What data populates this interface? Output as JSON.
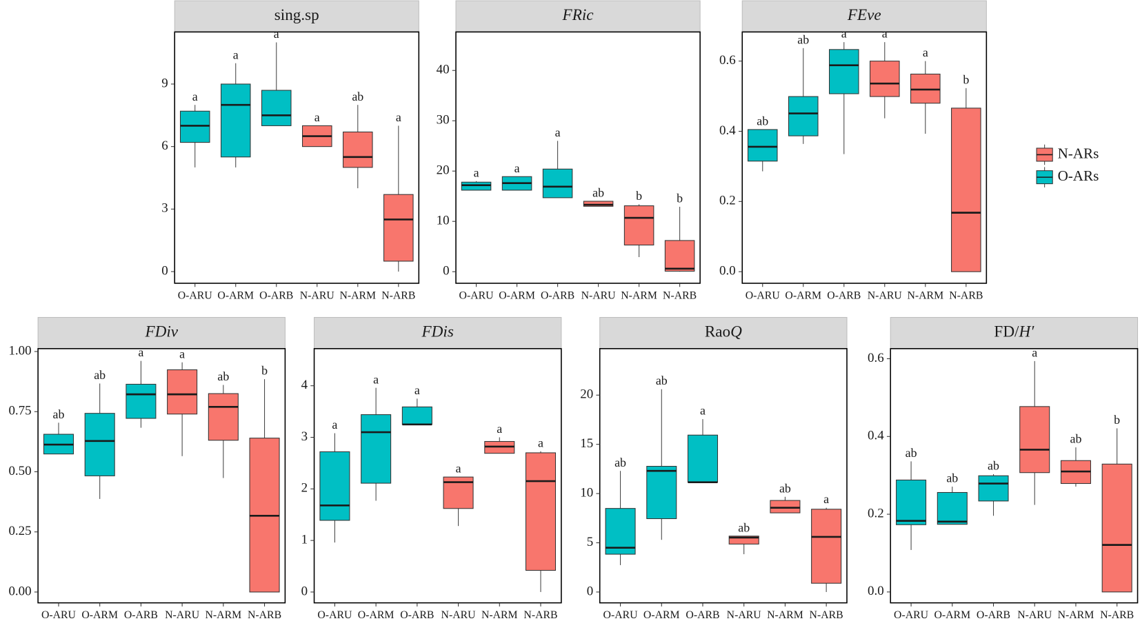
{
  "chart_data": [
    {
      "type": "box",
      "title": [
        {
          "text": "sing.sp",
          "italic": false
        }
      ],
      "categories": [
        "O-ARU",
        "O-ARM",
        "O-ARB",
        "N-ARU",
        "N-ARM",
        "N-ARB"
      ],
      "colors": [
        "#00BFC4",
        "#00BFC4",
        "#00BFC4",
        "#F8766D",
        "#F8766D",
        "#F8766D"
      ],
      "min": [
        5,
        5,
        7,
        6,
        4,
        0
      ],
      "q1": [
        6.2,
        5.5,
        7,
        6,
        5,
        0.5
      ],
      "median": [
        7,
        8,
        7.5,
        6.5,
        5.5,
        2.5
      ],
      "q3": [
        7.7,
        9,
        8.7,
        7,
        6.7,
        3.7
      ],
      "max": [
        8,
        10,
        11,
        7,
        8,
        7
      ],
      "letters": [
        "a",
        "a",
        "a",
        "a",
        "ab",
        "a"
      ],
      "ylim": [
        -0.56,
        11.5
      ],
      "yticks": [
        0,
        3,
        6,
        9
      ]
    },
    {
      "type": "box",
      "title": [
        {
          "text": "FRic",
          "italic": true
        }
      ],
      "categories": [
        "O-ARU",
        "O-ARM",
        "O-ARB",
        "N-ARU",
        "N-ARM",
        "N-ARB"
      ],
      "colors": [
        "#00BFC4",
        "#00BFC4",
        "#00BFC4",
        "#F8766D",
        "#F8766D",
        "#F8766D"
      ],
      "min": [
        16.2,
        16.2,
        14.7,
        13,
        2.9,
        0
      ],
      "q1": [
        16.2,
        16.2,
        14.7,
        13,
        5.3,
        0.1
      ],
      "median": [
        17.2,
        17.6,
        16.9,
        13.3,
        10.7,
        0.6
      ],
      "q3": [
        17.8,
        18.9,
        20.4,
        14,
        13.1,
        6.2
      ],
      "max": [
        18,
        18.9,
        26,
        14,
        13.4,
        12.9
      ],
      "letters": [
        "a",
        "a",
        "a",
        "ab",
        "b",
        "b"
      ],
      "ylim": [
        -2.3,
        47.65
      ],
      "yticks": [
        0,
        10,
        20,
        30,
        40
      ]
    },
    {
      "type": "box",
      "title": [
        {
          "text": "FEve",
          "italic": true
        }
      ],
      "categories": [
        "O-ARU",
        "O-ARM",
        "O-ARB",
        "N-ARU",
        "N-ARM",
        "N-ARB"
      ],
      "colors": [
        "#00BFC4",
        "#00BFC4",
        "#00BFC4",
        "#F8766D",
        "#F8766D",
        "#F8766D"
      ],
      "min": [
        0.286,
        0.364,
        0.335,
        0.437,
        0.393,
        0
      ],
      "q1": [
        0.315,
        0.387,
        0.507,
        0.499,
        0.48,
        0
      ],
      "median": [
        0.356,
        0.451,
        0.588,
        0.536,
        0.519,
        0.168
      ],
      "q3": [
        0.405,
        0.499,
        0.633,
        0.6,
        0.563,
        0.466
      ],
      "max": [
        0.405,
        0.637,
        0.654,
        0.654,
        0.6,
        0.523
      ],
      "letters": [
        "ab",
        "ab",
        "a",
        "a",
        "a",
        "b"
      ],
      "ylim": [
        -0.033,
        0.683
      ],
      "yticks": [
        {
          "value": 0,
          "label": "0.0"
        },
        0.2,
        0.4,
        0.6
      ]
    },
    {
      "type": "box",
      "title": [
        {
          "text": "FDiv",
          "italic": true
        }
      ],
      "categories": [
        "O-ARU",
        "O-ARM",
        "O-ARB",
        "N-ARU",
        "N-ARM",
        "N-ARB"
      ],
      "colors": [
        "#00BFC4",
        "#00BFC4",
        "#00BFC4",
        "#F8766D",
        "#F8766D",
        "#F8766D"
      ],
      "min": [
        0.574,
        0.387,
        0.683,
        0.565,
        0.474,
        0
      ],
      "q1": [
        0.574,
        0.483,
        0.722,
        0.74,
        0.631,
        0
      ],
      "median": [
        0.613,
        0.628,
        0.822,
        0.822,
        0.77,
        0.317
      ],
      "q3": [
        0.656,
        0.743,
        0.864,
        0.924,
        0.825,
        0.64
      ],
      "max": [
        0.704,
        0.867,
        0.961,
        0.955,
        0.861,
        0.885
      ],
      "letters": [
        "ab",
        "ab",
        "a",
        "a",
        "ab",
        "b"
      ],
      "ylim": [
        -0.045,
        1.012
      ],
      "yticks": [
        {
          "value": 0,
          "label": "0.00"
        },
        0.25,
        {
          "value": 0.5,
          "label": "0.50"
        },
        0.75,
        {
          "value": 1,
          "label": "1.00"
        }
      ]
    },
    {
      "type": "box",
      "title": [
        {
          "text": "FDis",
          "italic": true
        }
      ],
      "categories": [
        "O-ARU",
        "O-ARM",
        "O-ARB",
        "N-ARU",
        "N-ARM",
        "N-ARB"
      ],
      "colors": [
        "#00BFC4",
        "#00BFC4",
        "#00BFC4",
        "#F8766D",
        "#F8766D",
        "#F8766D"
      ],
      "min": [
        0.96,
        1.77,
        3.25,
        1.28,
        2.69,
        0
      ],
      "q1": [
        1.39,
        2.11,
        3.25,
        1.62,
        2.69,
        0.42
      ],
      "median": [
        1.68,
        3.1,
        3.25,
        2.13,
        2.82,
        2.15
      ],
      "q3": [
        2.72,
        3.44,
        3.59,
        2.23,
        2.92,
        2.7
      ],
      "max": [
        3.08,
        3.96,
        3.75,
        2.23,
        3,
        2.73
      ],
      "letters": [
        "a",
        "a",
        "a",
        "a",
        "a",
        "a"
      ],
      "ylim": [
        -0.21,
        4.72
      ],
      "yticks": [
        0,
        1,
        2,
        3,
        4
      ]
    },
    {
      "type": "box",
      "title": [
        {
          "text": "Rao",
          "italic": false
        },
        {
          "text": "Q",
          "italic": true
        }
      ],
      "categories": [
        "O-ARU",
        "O-ARM",
        "O-ARB",
        "N-ARU",
        "N-ARM",
        "N-ARB"
      ],
      "colors": [
        "#00BFC4",
        "#00BFC4",
        "#00BFC4",
        "#F8766D",
        "#F8766D",
        "#F8766D"
      ],
      "min": [
        2.73,
        5.3,
        11.15,
        3.84,
        8.04,
        0
      ],
      "q1": [
        3.84,
        7.45,
        11.15,
        4.87,
        8.04,
        0.89
      ],
      "median": [
        4.5,
        12.3,
        11.15,
        5.53,
        8.56,
        5.6
      ],
      "q3": [
        8.49,
        12.77,
        15.94,
        5.68,
        9.3,
        8.41
      ],
      "max": [
        12.3,
        20.6,
        17.56,
        5.68,
        9.67,
        8.56
      ],
      "letters": [
        "ab",
        "ab",
        "a",
        "ab",
        "ab",
        "a"
      ],
      "ylim": [
        -1.1,
        24.72
      ],
      "yticks": [
        0,
        5,
        10,
        15,
        20
      ]
    },
    {
      "type": "box",
      "title": [
        {
          "text": "FD/",
          "italic": false
        },
        {
          "text": "H′",
          "italic": true
        }
      ],
      "categories": [
        "O-ARU",
        "O-ARM",
        "O-ARB",
        "N-ARU",
        "N-ARM",
        "N-ARB"
      ],
      "colors": [
        "#00BFC4",
        "#00BFC4",
        "#00BFC4",
        "#F8766D",
        "#F8766D",
        "#F8766D"
      ],
      "min": [
        0.108,
        0.174,
        0.196,
        0.224,
        0.271,
        0
      ],
      "q1": [
        0.173,
        0.174,
        0.234,
        0.307,
        0.279,
        0
      ],
      "median": [
        0.183,
        0.181,
        0.279,
        0.366,
        0.31,
        0.121
      ],
      "q3": [
        0.288,
        0.256,
        0.299,
        0.477,
        0.338,
        0.329
      ],
      "max": [
        0.336,
        0.271,
        0.303,
        0.594,
        0.372,
        0.421
      ],
      "letters": [
        "ab",
        "ab",
        "ab",
        "a",
        "ab",
        "b"
      ],
      "ylim": [
        -0.028,
        0.626
      ],
      "yticks": [
        {
          "value": 0,
          "label": "0.0"
        },
        0.2,
        0.4,
        0.6
      ]
    }
  ],
  "legend": [
    {
      "name": "N-ARs",
      "color": "#F8766D"
    },
    {
      "name": "O-ARs",
      "color": "#00BFC4"
    }
  ]
}
